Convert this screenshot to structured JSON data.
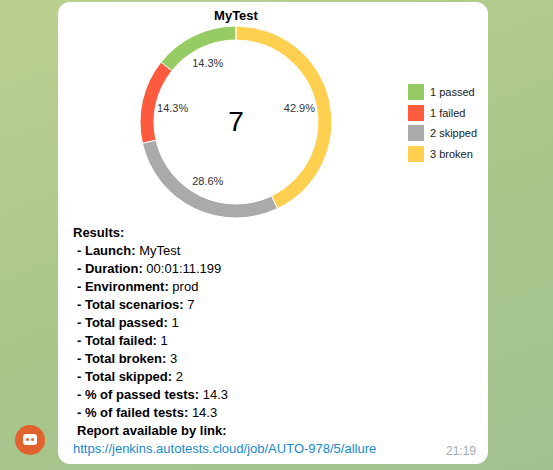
{
  "chart_data": {
    "type": "pie",
    "title": "MyTest",
    "center_text": "7",
    "categories": [
      "1 passed",
      "1 failed",
      "2 skipped",
      "3 broken"
    ],
    "values": [
      14.3,
      14.3,
      28.6,
      42.9
    ],
    "value_labels": [
      "14.3%",
      "14.3%",
      "28.6%",
      "42.9%"
    ],
    "colors": [
      "#97cc64",
      "#fd5a3e",
      "#aaaaaa",
      "#ffd050"
    ],
    "data_labels": true,
    "legend": "right"
  },
  "message": {
    "lines": [
      {
        "label": "Results:"
      },
      {
        "label": "- Launch:",
        "value": "MyTest"
      },
      {
        "label": "- Duration:",
        "value": "00:01:11.199"
      },
      {
        "label": "- Environment:",
        "value": "prod"
      },
      {
        "label": "- Total scenarios:",
        "value": "7"
      },
      {
        "label": "- Total passed:",
        "value": "1"
      },
      {
        "label": "- Total failed:",
        "value": "1"
      },
      {
        "label": "- Total broken:",
        "value": "3"
      },
      {
        "label": "- Total skipped:",
        "value": "2"
      },
      {
        "label": "- % of passed tests:",
        "value": "14.3"
      },
      {
        "label": "- % of failed tests:",
        "value": "14.3"
      },
      {
        "label": "Report available by link:"
      }
    ],
    "link": "https://jenkins.autotests.cloud/job/AUTO-978/5/allure",
    "time": "21:19"
  }
}
